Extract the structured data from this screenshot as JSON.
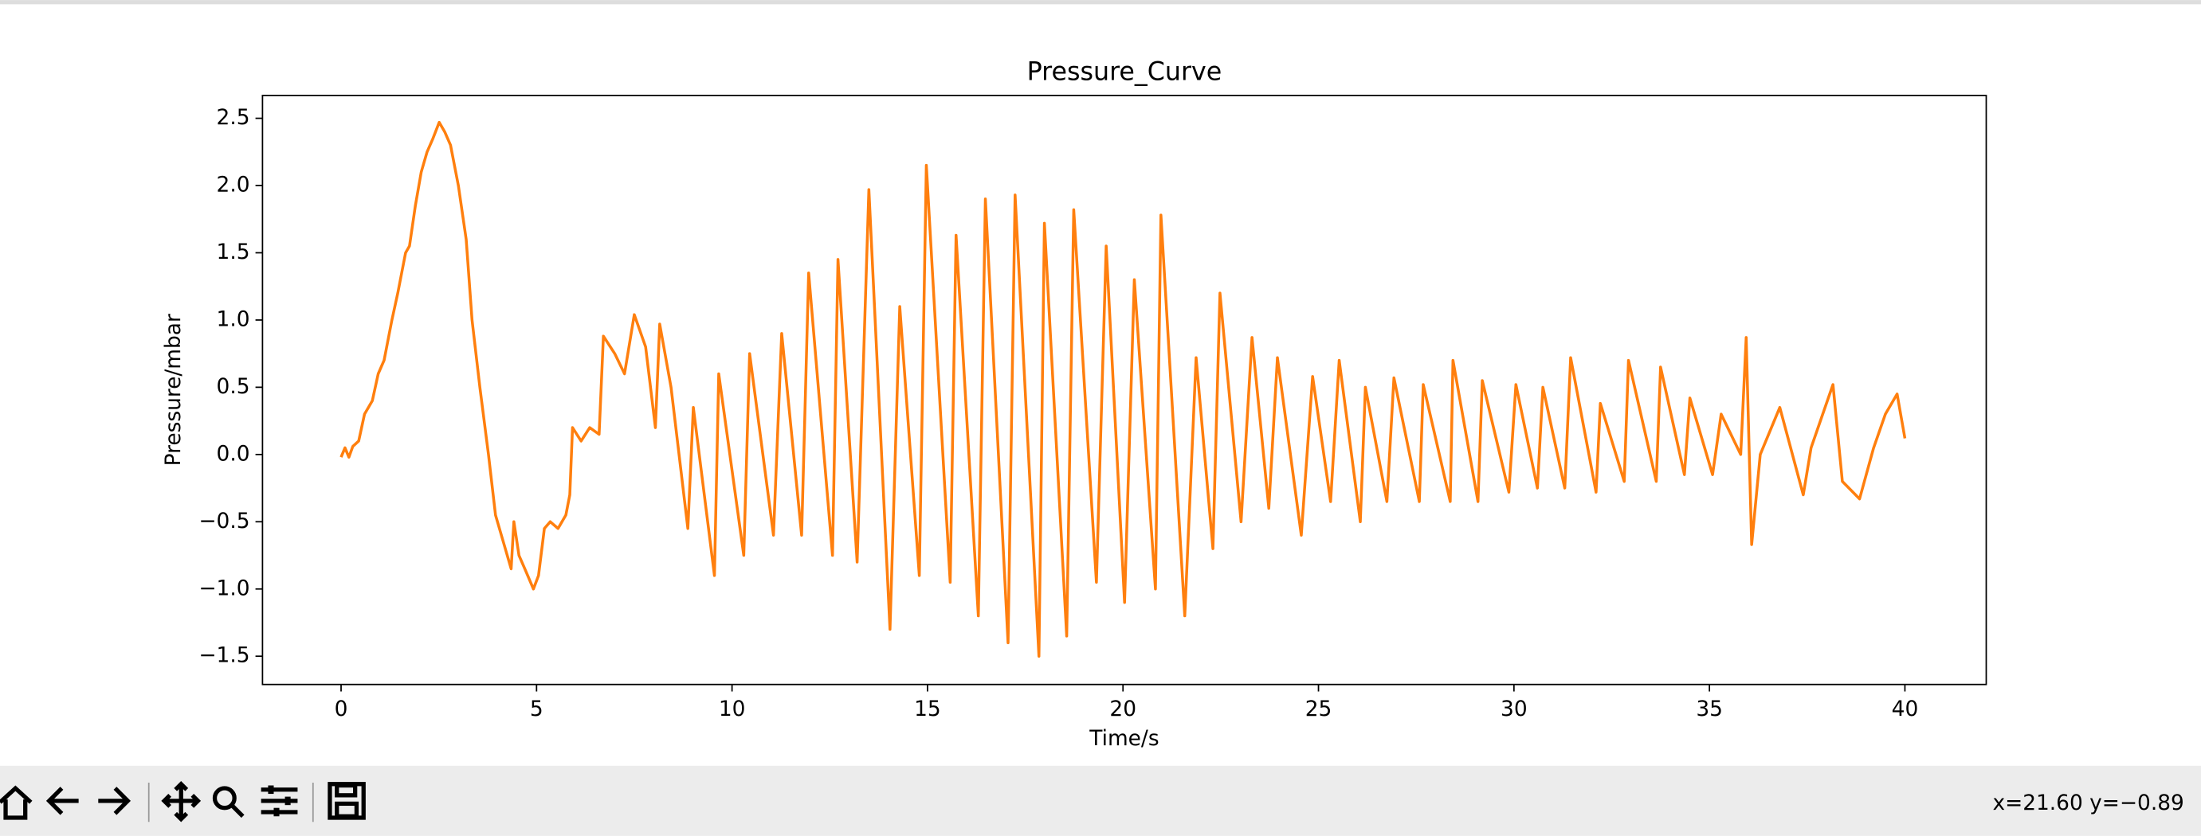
{
  "chart_data": {
    "type": "line",
    "title": "Pressure_Curve",
    "x_label": "Time/s",
    "y_label": "Pressure/mbar",
    "x": [
      0,
      0.1,
      0.2,
      0.3,
      0.45,
      0.6,
      0.8,
      0.95,
      1.1,
      1.3,
      1.45,
      1.65,
      1.75,
      1.9,
      2.05,
      2.2,
      2.35,
      2.51,
      2.65,
      2.8,
      3.0,
      3.2,
      3.35,
      3.55,
      3.77,
      3.95,
      4.1,
      4.35,
      4.42,
      4.55,
      4.7,
      4.92,
      5.05,
      5.2,
      5.35,
      5.55,
      5.75,
      5.85,
      5.92,
      6.14,
      6.36,
      6.6,
      6.71,
      7.0,
      7.25,
      7.5,
      7.79,
      8.04,
      8.15,
      8.44,
      8.87,
      9.01,
      9.55,
      9.66,
      10.3,
      10.45,
      11.06,
      11.27,
      11.78,
      11.96,
      12.57,
      12.71,
      13.2,
      13.5,
      14.04,
      14.29,
      14.79,
      14.97,
      15.58,
      15.73,
      16.3,
      16.48,
      17.06,
      17.24,
      17.85,
      17.99,
      18.56,
      18.74,
      19.32,
      19.57,
      20.04,
      20.29,
      20.83,
      20.97,
      21.58,
      21.87,
      22.3,
      22.48,
      23.02,
      23.3,
      23.73,
      23.95,
      24.56,
      24.85,
      25.31,
      25.53,
      26.07,
      26.2,
      26.75,
      26.93,
      27.58,
      27.68,
      28.37,
      28.44,
      29.08,
      29.19,
      29.87,
      30.05,
      30.6,
      30.74,
      31.3,
      31.45,
      32.1,
      32.21,
      32.82,
      32.93,
      33.64,
      33.75,
      34.36,
      34.5,
      35.08,
      35.3,
      35.8,
      35.94,
      36.08,
      36.3,
      36.8,
      37.4,
      37.6,
      38.16,
      38.4,
      38.84,
      39.2,
      39.5,
      39.8,
      40.0
    ],
    "series": [
      {
        "name": "Pressure",
        "color": "#ff7f0e",
        "values": [
          -0.02,
          0.05,
          -0.02,
          0.06,
          0.1,
          0.3,
          0.4,
          0.6,
          0.7,
          1.0,
          1.2,
          1.5,
          1.55,
          1.85,
          2.1,
          2.25,
          2.35,
          2.47,
          2.4,
          2.3,
          2.0,
          1.6,
          1.0,
          0.5,
          0.0,
          -0.45,
          -0.6,
          -0.85,
          -0.5,
          -0.75,
          -0.85,
          -1.0,
          -0.9,
          -0.55,
          -0.5,
          -0.55,
          -0.45,
          -0.3,
          0.2,
          0.1,
          0.2,
          0.15,
          0.88,
          0.75,
          0.6,
          1.04,
          0.8,
          0.2,
          0.97,
          0.5,
          -0.55,
          0.35,
          -0.9,
          0.6,
          -0.75,
          0.75,
          -0.6,
          0.9,
          -0.6,
          1.35,
          -0.75,
          1.45,
          -0.8,
          1.97,
          -1.3,
          1.1,
          -0.9,
          2.15,
          -0.95,
          1.63,
          -1.2,
          1.9,
          -1.4,
          1.93,
          -1.5,
          1.72,
          -1.35,
          1.82,
          -0.95,
          1.55,
          -1.1,
          1.3,
          -1.0,
          1.78,
          -1.2,
          0.72,
          -0.7,
          1.2,
          -0.5,
          0.87,
          -0.4,
          0.72,
          -0.6,
          0.58,
          -0.35,
          0.7,
          -0.5,
          0.5,
          -0.35,
          0.57,
          -0.35,
          0.52,
          -0.35,
          0.7,
          -0.35,
          0.55,
          -0.28,
          0.52,
          -0.25,
          0.5,
          -0.25,
          0.72,
          -0.28,
          0.38,
          -0.2,
          0.7,
          -0.2,
          0.65,
          -0.15,
          0.42,
          -0.15,
          0.3,
          0.0,
          0.87,
          -0.67,
          0.0,
          0.35,
          -0.3,
          0.05,
          0.52,
          -0.2,
          -0.33,
          0.05,
          0.3,
          0.45,
          0.12
        ]
      }
    ],
    "xlim": [
      -2.01,
      42.08
    ],
    "ylim": [
      -1.71,
      2.67
    ],
    "xticks": [
      0,
      5,
      10,
      15,
      20,
      25,
      30,
      35,
      40
    ],
    "yticks": [
      {
        "value": -1.5,
        "label": "−1.5"
      },
      {
        "value": -1.0,
        "label": "−1.0"
      },
      {
        "value": -0.5,
        "label": "−0.5"
      },
      {
        "value": 0.0,
        "label": "0.0"
      },
      {
        "value": 0.5,
        "label": "0.5"
      },
      {
        "value": 1.0,
        "label": "1.0"
      },
      {
        "value": 1.5,
        "label": "1.5"
      },
      {
        "value": 2.0,
        "label": "2.0"
      },
      {
        "value": 2.5,
        "label": "2.5"
      }
    ],
    "grid": false
  },
  "status": "x=21.60 y=−0.89"
}
